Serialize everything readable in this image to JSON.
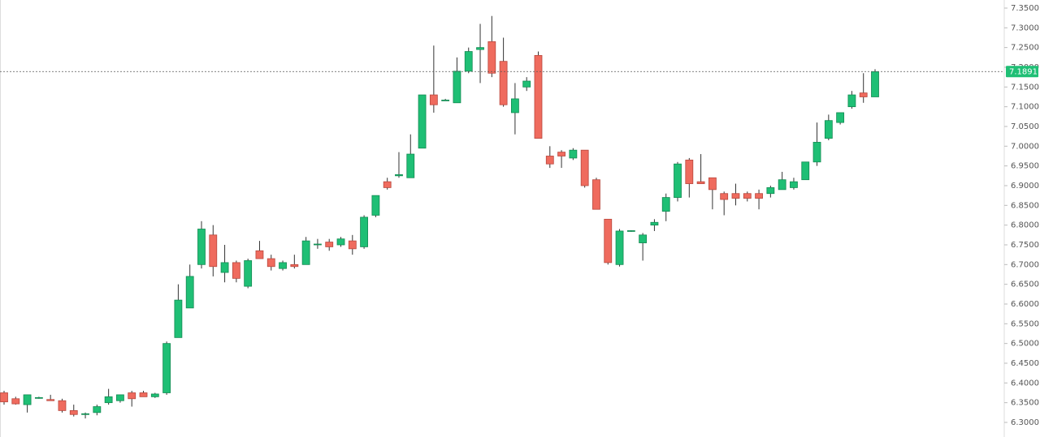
{
  "chart_data": {
    "type": "candlestick",
    "up_color": "#1fbf75",
    "down_color": "#ef6b5e",
    "categories": [
      null,
      null,
      null,
      null,
      null,
      null,
      null,
      null,
      null,
      null,
      null,
      null,
      null,
      null,
      null,
      null,
      null,
      null,
      null,
      null,
      null,
      null,
      null,
      null,
      null,
      null,
      null,
      null,
      null,
      null,
      null,
      null,
      null,
      null,
      null,
      null,
      null,
      null,
      null,
      null,
      null,
      null,
      null,
      null,
      null,
      null,
      null,
      null,
      null,
      null,
      null,
      null,
      null,
      null,
      null,
      null,
      null,
      null,
      null,
      null,
      null,
      null,
      null,
      null,
      null,
      null,
      null,
      null,
      null,
      null,
      null,
      null,
      null,
      null,
      null,
      null
    ],
    "open": [
      6.375,
      6.36,
      6.345,
      6.362,
      6.358,
      6.355,
      6.33,
      6.32,
      6.325,
      6.35,
      6.355,
      6.375,
      6.375,
      6.365,
      6.375,
      6.515,
      6.59,
      6.7,
      6.775,
      6.68,
      6.705,
      6.645,
      6.735,
      6.715,
      6.69,
      6.7,
      6.7,
      6.75,
      6.757,
      6.75,
      6.76,
      6.745,
      6.825,
      6.91,
      6.925,
      6.92,
      6.995,
      7.13,
      7.115,
      7.11,
      7.19,
      7.245,
      7.265,
      7.215,
      7.085,
      7.15,
      7.23,
      6.975,
      6.985,
      6.97,
      6.99,
      6.915,
      6.815,
      6.7,
      6.785,
      6.755,
      6.8,
      6.835,
      6.87,
      6.965,
      6.91,
      6.92,
      6.88,
      6.88,
      6.88,
      6.88,
      6.88,
      6.89,
      6.895,
      6.915,
      6.96,
      7.02,
      7.06,
      7.1,
      7.135,
      7.125
    ],
    "high": [
      6.38,
      6.365,
      6.37,
      6.365,
      6.37,
      6.36,
      6.345,
      6.325,
      6.345,
      6.385,
      6.37,
      6.38,
      6.38,
      6.375,
      6.505,
      6.65,
      6.7,
      6.81,
      6.8,
      6.75,
      6.71,
      6.715,
      6.76,
      6.725,
      6.71,
      6.725,
      6.77,
      6.765,
      6.765,
      6.77,
      6.775,
      6.825,
      6.875,
      6.92,
      6.985,
      7.03,
      7.13,
      7.255,
      7.12,
      7.225,
      7.25,
      7.31,
      7.33,
      7.275,
      7.16,
      7.175,
      7.24,
      7.0,
      6.99,
      6.995,
      6.99,
      6.92,
      6.815,
      6.79,
      6.787,
      6.78,
      6.815,
      6.88,
      6.96,
      6.97,
      6.98,
      6.92,
      6.885,
      6.905,
      6.885,
      6.89,
      6.9,
      6.935,
      6.92,
      6.96,
      7.06,
      7.08,
      7.085,
      7.14,
      7.185,
      7.195
    ],
    "low": [
      6.345,
      6.345,
      6.325,
      6.36,
      6.355,
      6.325,
      6.315,
      6.31,
      6.318,
      6.345,
      6.35,
      6.34,
      6.365,
      6.362,
      6.37,
      6.515,
      6.59,
      6.69,
      6.67,
      6.655,
      6.655,
      6.64,
      6.715,
      6.685,
      6.685,
      6.69,
      6.7,
      6.74,
      6.735,
      6.745,
      6.725,
      6.74,
      6.82,
      6.89,
      6.92,
      6.92,
      6.995,
      7.085,
      7.115,
      7.11,
      7.185,
      7.16,
      7.175,
      7.1,
      7.03,
      7.14,
      7.02,
      6.945,
      6.945,
      6.965,
      6.895,
      6.84,
      6.7,
      6.695,
      6.783,
      6.71,
      6.785,
      6.81,
      6.86,
      6.87,
      6.905,
      6.84,
      6.825,
      6.85,
      6.86,
      6.84,
      6.87,
      6.89,
      6.89,
      6.915,
      6.95,
      7.015,
      7.055,
      7.095,
      7.11,
      7.125
    ],
    "close": [
      6.352,
      6.347,
      6.37,
      6.363,
      6.355,
      6.33,
      6.32,
      6.322,
      6.34,
      6.365,
      6.37,
      6.36,
      6.365,
      6.372,
      6.5,
      6.61,
      6.67,
      6.79,
      6.695,
      6.705,
      6.665,
      6.71,
      6.715,
      6.695,
      6.705,
      6.695,
      6.76,
      6.752,
      6.745,
      6.765,
      6.74,
      6.82,
      6.875,
      6.895,
      6.928,
      6.98,
      7.13,
      7.105,
      7.117,
      7.19,
      7.24,
      7.25,
      7.185,
      7.105,
      7.12,
      7.165,
      7.02,
      6.955,
      6.975,
      6.99,
      6.9,
      6.84,
      6.705,
      6.785,
      6.786,
      6.775,
      6.807,
      6.87,
      6.955,
      6.905,
      6.905,
      6.89,
      6.865,
      6.868,
      6.868,
      6.868,
      6.895,
      6.915,
      6.91,
      6.96,
      7.01,
      7.065,
      7.085,
      7.13,
      7.125,
      7.189
    ],
    "ylim": [
      6.263,
      7.3705
    ],
    "yticks": [
      {
        "value": 6.3,
        "label": "6.3000"
      },
      {
        "value": 6.35,
        "label": "6.3500"
      },
      {
        "value": 6.4,
        "label": "6.4000"
      },
      {
        "value": 6.45,
        "label": "6.4500"
      },
      {
        "value": 6.5,
        "label": "6.5000"
      },
      {
        "value": 6.55,
        "label": "6.5500"
      },
      {
        "value": 6.6,
        "label": "6.6000"
      },
      {
        "value": 6.65,
        "label": "6.6500"
      },
      {
        "value": 6.7,
        "label": "6.7000"
      },
      {
        "value": 6.75,
        "label": "6.7500"
      },
      {
        "value": 6.8,
        "label": "6.8000"
      },
      {
        "value": 6.85,
        "label": "6.8500"
      },
      {
        "value": 6.9,
        "label": "6.9000"
      },
      {
        "value": 6.95,
        "label": "6.9500"
      },
      {
        "value": 7.0,
        "label": "7.0000"
      },
      {
        "value": 7.05,
        "label": "7.0500"
      },
      {
        "value": 7.1,
        "label": "7.1000"
      },
      {
        "value": 7.15,
        "label": "7.1500"
      },
      {
        "value": 7.2,
        "label": "7.2000"
      },
      {
        "value": 7.25,
        "label": "7.2500"
      },
      {
        "value": 7.3,
        "label": "7.3000"
      },
      {
        "value": 7.35,
        "label": "7.3500"
      }
    ],
    "last_price": 7.1891,
    "last_price_color": "#1fbf75",
    "grid": false
  }
}
